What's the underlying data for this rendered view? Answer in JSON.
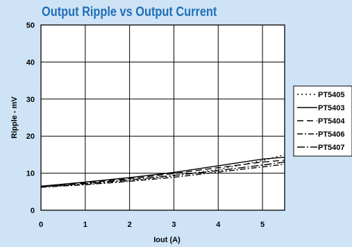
{
  "chart_data": {
    "type": "line",
    "title": "Output Ripple vs Output Current",
    "xlabel": "Iout  (A)",
    "ylabel": "Ripple - mV",
    "xlim": [
      0,
      5.5
    ],
    "ylim": [
      0,
      50
    ],
    "xticks": [
      "0",
      "1",
      "2",
      "3",
      "4",
      "5"
    ],
    "yticks": [
      "0",
      "10",
      "20",
      "30",
      "40",
      "50"
    ],
    "grid": true,
    "legend_position": "right",
    "series": [
      {
        "name": "PT5405",
        "dash": "2,4",
        "points": [
          [
            0,
            6.3
          ],
          [
            1,
            7.0
          ],
          [
            2,
            7.9
          ],
          [
            3,
            9.3
          ],
          [
            4,
            11.0
          ],
          [
            5,
            13.4
          ],
          [
            5.5,
            15.0
          ]
        ]
      },
      {
        "name": "PT5403",
        "dash": "none",
        "points": [
          [
            0,
            6.5
          ],
          [
            1,
            7.6
          ],
          [
            2,
            8.8
          ],
          [
            3,
            10.2
          ],
          [
            4,
            12.0
          ],
          [
            5,
            13.8
          ],
          [
            5.5,
            14.3
          ]
        ]
      },
      {
        "name": "PT5404",
        "dash": "9,5",
        "points": [
          [
            0,
            6.4
          ],
          [
            1,
            7.4
          ],
          [
            2,
            8.5
          ],
          [
            3,
            9.9
          ],
          [
            4,
            11.5
          ],
          [
            5,
            13.0
          ],
          [
            5.5,
            13.5
          ]
        ]
      },
      {
        "name": "PT5406",
        "dash": "8,3,2,3",
        "points": [
          [
            0,
            6.2
          ],
          [
            1,
            6.9
          ],
          [
            2,
            7.8
          ],
          [
            3,
            8.9
          ],
          [
            4,
            10.3
          ],
          [
            5,
            11.7
          ],
          [
            5.5,
            12.4
          ]
        ]
      },
      {
        "name": "PT5407",
        "dash": "11,3,2,3",
        "points": [
          [
            0,
            6.3
          ],
          [
            1,
            7.2
          ],
          [
            2,
            8.2
          ],
          [
            3,
            9.4
          ],
          [
            4,
            10.7
          ],
          [
            5,
            12.2
          ],
          [
            5.5,
            13.0
          ]
        ]
      }
    ]
  }
}
